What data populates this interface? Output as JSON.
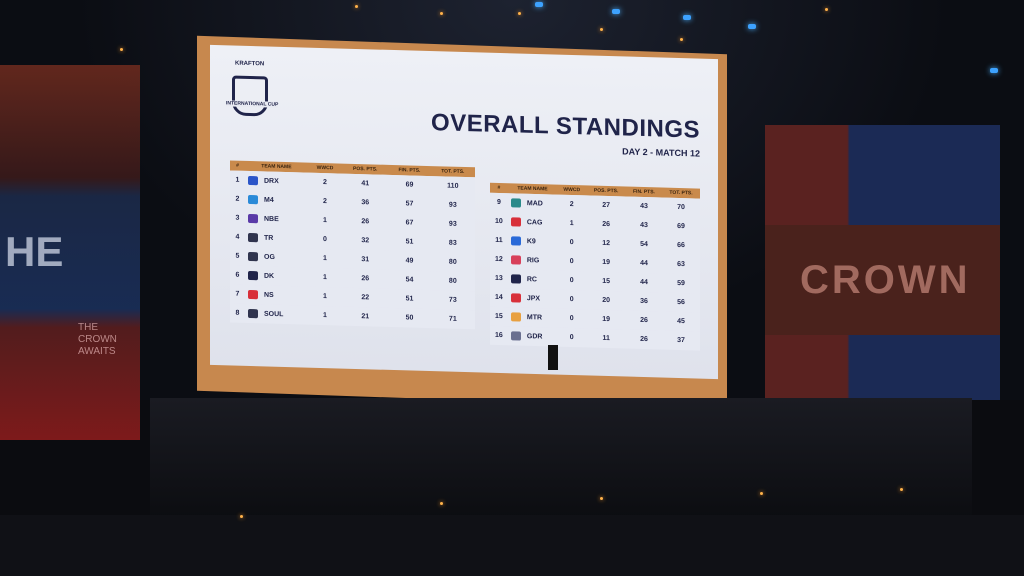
{
  "screen": {
    "brand": "KRAFTON",
    "event_logo": "INTERNATIONAL CUP",
    "title": "OVERALL STANDINGS",
    "subtitle": "DAY 2 - MATCH 12",
    "columns": [
      "#",
      "TEAM NAME",
      "WWCD",
      "POS. PTS.",
      "FIN. PTS.",
      "TOT. PTS."
    ],
    "left_table": [
      {
        "rank": "1",
        "team": "DRX",
        "wwcd": "2",
        "pos": "41",
        "fin": "69",
        "tot": "110",
        "color": "#2b55c8"
      },
      {
        "rank": "2",
        "team": "M4",
        "wwcd": "2",
        "pos": "36",
        "fin": "57",
        "tot": "93",
        "color": "#2a8ad8"
      },
      {
        "rank": "3",
        "team": "NBE",
        "wwcd": "1",
        "pos": "26",
        "fin": "67",
        "tot": "93",
        "color": "#5a3aa8"
      },
      {
        "rank": "4",
        "team": "TR",
        "wwcd": "0",
        "pos": "32",
        "fin": "51",
        "tot": "83",
        "color": "#30344e"
      },
      {
        "rank": "5",
        "team": "OG",
        "wwcd": "1",
        "pos": "31",
        "fin": "49",
        "tot": "80",
        "color": "#30344e"
      },
      {
        "rank": "6",
        "team": "DK",
        "wwcd": "1",
        "pos": "26",
        "fin": "54",
        "tot": "80",
        "color": "#20244a"
      },
      {
        "rank": "7",
        "team": "NS",
        "wwcd": "1",
        "pos": "22",
        "fin": "51",
        "tot": "73",
        "color": "#d8303a"
      },
      {
        "rank": "8",
        "team": "SOUL",
        "wwcd": "1",
        "pos": "21",
        "fin": "50",
        "tot": "71",
        "color": "#30344e"
      }
    ],
    "right_table": [
      {
        "rank": "9",
        "team": "MAD",
        "wwcd": "2",
        "pos": "27",
        "fin": "43",
        "tot": "70",
        "color": "#2a8a8a"
      },
      {
        "rank": "10",
        "team": "CAG",
        "wwcd": "1",
        "pos": "26",
        "fin": "43",
        "tot": "69",
        "color": "#d8303a"
      },
      {
        "rank": "11",
        "team": "K9",
        "wwcd": "0",
        "pos": "12",
        "fin": "54",
        "tot": "66",
        "color": "#2a6ad8"
      },
      {
        "rank": "12",
        "team": "RIG",
        "wwcd": "0",
        "pos": "19",
        "fin": "44",
        "tot": "63",
        "color": "#d8405a"
      },
      {
        "rank": "13",
        "team": "RC",
        "wwcd": "0",
        "pos": "15",
        "fin": "44",
        "tot": "59",
        "color": "#20244a"
      },
      {
        "rank": "14",
        "team": "JPX",
        "wwcd": "0",
        "pos": "20",
        "fin": "36",
        "tot": "56",
        "color": "#d8303a"
      },
      {
        "rank": "15",
        "team": "MTR",
        "wwcd": "0",
        "pos": "19",
        "fin": "26",
        "tot": "45",
        "color": "#e8a040"
      },
      {
        "rank": "16",
        "team": "GDR",
        "wwcd": "0",
        "pos": "11",
        "fin": "26",
        "tot": "37",
        "color": "#6a7090"
      }
    ]
  },
  "backdrop": {
    "left_text": "HE",
    "left_small": "THE CROWN AWAITS",
    "right_text": "CROWN"
  }
}
